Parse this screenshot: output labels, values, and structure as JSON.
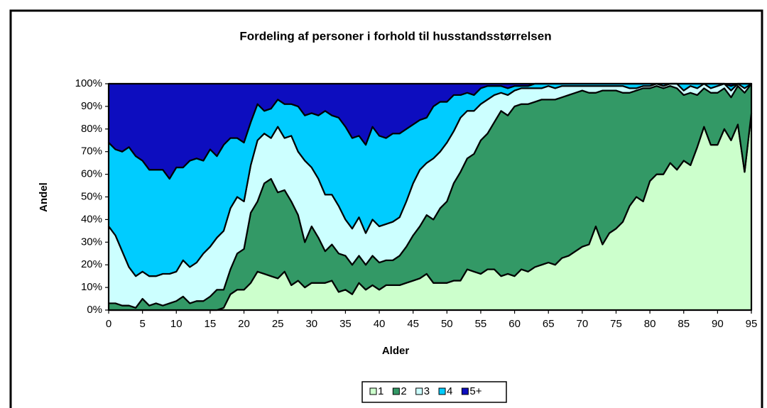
{
  "chart_data": {
    "type": "stacked_area_100",
    "title": "Fordeling af personer i forhold til husstandsstørrelsen",
    "x_label": "Alder",
    "y_label": "Andel",
    "x": [
      0,
      1,
      2,
      3,
      4,
      5,
      6,
      7,
      8,
      9,
      10,
      11,
      12,
      13,
      14,
      15,
      16,
      17,
      18,
      19,
      20,
      21,
      22,
      23,
      24,
      25,
      26,
      27,
      28,
      29,
      30,
      31,
      32,
      33,
      34,
      35,
      36,
      37,
      38,
      39,
      40,
      41,
      42,
      43,
      44,
      45,
      46,
      47,
      48,
      49,
      50,
      51,
      52,
      53,
      54,
      55,
      56,
      57,
      58,
      59,
      60,
      61,
      62,
      63,
      64,
      65,
      66,
      67,
      68,
      69,
      70,
      71,
      72,
      73,
      74,
      75,
      76,
      77,
      78,
      79,
      80,
      81,
      82,
      83,
      84,
      85,
      86,
      87,
      88,
      89,
      90,
      91,
      92,
      93,
      94,
      95
    ],
    "xlim": [
      0,
      95
    ],
    "xticks": [
      0,
      5,
      10,
      15,
      20,
      25,
      30,
      35,
      40,
      45,
      50,
      55,
      60,
      65,
      70,
      75,
      80,
      85,
      90,
      95
    ],
    "ylim": [
      0,
      100
    ],
    "yticks": [
      {
        "value": 0,
        "label": "0%"
      },
      {
        "value": 10,
        "label": "10%"
      },
      {
        "value": 20,
        "label": "20%"
      },
      {
        "value": 30,
        "label": "30%"
      },
      {
        "value": 40,
        "label": "40%"
      },
      {
        "value": 50,
        "label": "50%"
      },
      {
        "value": 60,
        "label": "60%"
      },
      {
        "value": 70,
        "label": "70%"
      },
      {
        "value": 80,
        "label": "80%"
      },
      {
        "value": 90,
        "label": "90%"
      },
      {
        "value": 100,
        "label": "100%"
      }
    ],
    "legend": "bottom",
    "series": [
      {
        "name": "1",
        "color": "#ccffcc",
        "values": [
          0,
          0,
          0,
          0,
          0,
          0,
          0,
          0,
          0,
          0,
          0,
          0,
          0,
          0,
          0,
          0,
          0,
          1,
          7,
          9,
          9,
          12,
          17,
          16,
          15,
          14,
          17,
          11,
          13,
          10,
          12,
          12,
          12,
          13,
          8,
          9,
          7,
          12,
          9,
          11,
          9,
          11,
          11,
          11,
          12,
          13,
          14,
          16,
          12,
          12,
          12,
          13,
          13,
          18,
          17,
          16,
          18,
          18,
          15,
          16,
          15,
          18,
          17,
          19,
          20,
          21,
          20,
          23,
          24,
          26,
          28,
          29,
          37,
          29,
          34,
          36,
          39,
          46,
          50,
          48,
          57,
          60,
          60,
          65,
          62,
          66,
          64,
          72,
          81,
          73,
          73,
          80,
          75,
          82,
          61,
          87
        ]
      },
      {
        "name": "2",
        "color": "#339966",
        "values": [
          3,
          3,
          2,
          2,
          1,
          5,
          2,
          3,
          2,
          3,
          4,
          6,
          3,
          4,
          4,
          6,
          9,
          8,
          11,
          16,
          18,
          31,
          31,
          40,
          43,
          38,
          36,
          37,
          29,
          20,
          25,
          20,
          14,
          16,
          17,
          15,
          13,
          12,
          11,
          13,
          12,
          11,
          11,
          13,
          16,
          20,
          23,
          26,
          28,
          33,
          36,
          43,
          48,
          49,
          52,
          59,
          60,
          65,
          73,
          70,
          75,
          73,
          74,
          73,
          73,
          72,
          73,
          71,
          71,
          70,
          69,
          67,
          59,
          68,
          63,
          61,
          57,
          50,
          47,
          50,
          41,
          39,
          38,
          34,
          36,
          29,
          32,
          23,
          17,
          23,
          23,
          18,
          19,
          17,
          35,
          13
        ]
      },
      {
        "name": "3",
        "color": "#ccffff",
        "values": [
          34,
          30,
          24,
          17,
          14,
          12,
          13,
          12,
          14,
          13,
          13,
          16,
          16,
          17,
          21,
          22,
          23,
          26,
          27,
          25,
          21,
          21,
          27,
          22,
          18,
          29,
          23,
          29,
          28,
          36,
          26,
          26,
          25,
          22,
          21,
          16,
          16,
          17,
          14,
          16,
          16,
          16,
          17,
          17,
          20,
          23,
          25,
          23,
          27,
          25,
          26,
          23,
          24,
          21,
          19,
          16,
          15,
          12,
          8,
          9,
          7,
          7,
          7,
          6,
          5,
          6,
          5,
          5,
          4,
          3,
          2,
          3,
          3,
          2,
          2,
          2,
          3,
          2,
          1,
          1,
          1,
          1,
          1,
          1,
          2,
          2,
          3,
          3,
          2,
          2,
          3,
          2,
          3,
          1,
          2,
          0
        ]
      },
      {
        "name": "4",
        "color": "#00ccff",
        "values": [
          37,
          38,
          44,
          53,
          53,
          49,
          47,
          47,
          46,
          42,
          46,
          41,
          47,
          46,
          41,
          43,
          36,
          38,
          31,
          26,
          26,
          19,
          16,
          10,
          13,
          12,
          15,
          14,
          20,
          20,
          24,
          28,
          37,
          35,
          39,
          41,
          40,
          36,
          39,
          41,
          40,
          38,
          39,
          37,
          32,
          26,
          22,
          20,
          23,
          22,
          18,
          16,
          10,
          8,
          7,
          7,
          6,
          4,
          3,
          3,
          2,
          1,
          1,
          2,
          2,
          1,
          2,
          1,
          1,
          1,
          1,
          1,
          1,
          1,
          1,
          1,
          1,
          2,
          2,
          1,
          1,
          0,
          1,
          0,
          0,
          3,
          1,
          2,
          0,
          2,
          1,
          0,
          2,
          0,
          2,
          0
        ]
      },
      {
        "name": "5+",
        "color": "#0d0dbf",
        "values": [
          26,
          29,
          30,
          28,
          32,
          34,
          38,
          38,
          38,
          42,
          37,
          37,
          34,
          33,
          34,
          29,
          32,
          27,
          24,
          24,
          26,
          17,
          9,
          12,
          11,
          7,
          9,
          9,
          10,
          14,
          13,
          14,
          12,
          14,
          15,
          19,
          24,
          23,
          27,
          19,
          23,
          24,
          22,
          22,
          20,
          18,
          16,
          15,
          10,
          8,
          8,
          5,
          5,
          4,
          5,
          2,
          1,
          1,
          1,
          2,
          1,
          1,
          1,
          0,
          0,
          0,
          0,
          0,
          0,
          0,
          0,
          0,
          0,
          0,
          0,
          0,
          0,
          0,
          0,
          0,
          0,
          0,
          0,
          0,
          0,
          0,
          0,
          0,
          0,
          0,
          0,
          0,
          1,
          0,
          0,
          0
        ]
      }
    ]
  }
}
